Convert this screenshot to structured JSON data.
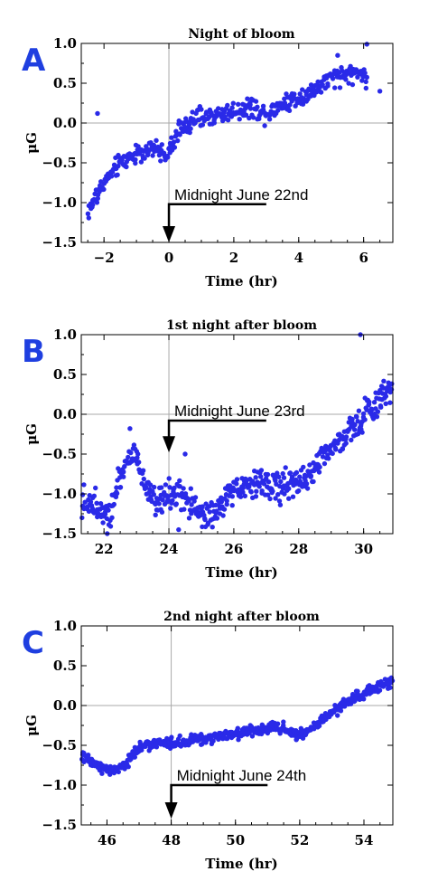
{
  "chart_data": [
    {
      "type": "scatter",
      "panel_letter": "A",
      "title": "Night of bloom",
      "xlabel": "Time (hr)",
      "ylabel": "μG",
      "xlim": [
        -2.7,
        6.9
      ],
      "ylim": [
        -1.5,
        1.0
      ],
      "xticks": [
        -2,
        0,
        2,
        4,
        6
      ],
      "yticks": [
        -1.5,
        -1.0,
        -0.5,
        0.0,
        0.5,
        1.0
      ],
      "ytick_labels": [
        "−1.5",
        "−1.0",
        "−0.5",
        "0.0",
        "0.5",
        "1.0"
      ],
      "xtick_labels": [
        "−2",
        "0",
        "2",
        "4",
        "6"
      ],
      "crosshair": {
        "x": 0,
        "y": 0
      },
      "annotation": {
        "text": "Midnight June 22nd",
        "x": 0,
        "x_end": 3.0,
        "y_line": -1.02,
        "y_arrow_tip": -1.5
      },
      "color": "#2a2ae8",
      "profile": [
        [
          -2.5,
          -1.12
        ],
        [
          -2.0,
          -0.75
        ],
        [
          -1.5,
          -0.5
        ],
        [
          -1.0,
          -0.38
        ],
        [
          -0.5,
          -0.33
        ],
        [
          0.0,
          -0.38
        ],
        [
          0.3,
          -0.1
        ],
        [
          0.8,
          0.05
        ],
        [
          1.5,
          0.1
        ],
        [
          2.0,
          0.15
        ],
        [
          2.5,
          0.2
        ],
        [
          3.0,
          0.12
        ],
        [
          3.5,
          0.25
        ],
        [
          4.0,
          0.32
        ],
        [
          4.5,
          0.42
        ],
        [
          5.0,
          0.55
        ],
        [
          5.5,
          0.62
        ],
        [
          6.0,
          0.62
        ],
        [
          6.5,
          0.4
        ]
      ],
      "t_range": [
        -2.5,
        6.1
      ],
      "noise": 0.09,
      "n_points": 420,
      "outliers": [
        [
          -2.2,
          0.12
        ],
        [
          6.5,
          0.4
        ],
        [
          6.1,
          0.99
        ],
        [
          5.2,
          0.85
        ]
      ]
    },
    {
      "type": "scatter",
      "panel_letter": "B",
      "title": "1st night after bloom",
      "xlabel": "Time (hr)",
      "ylabel": "μG",
      "xlim": [
        21.3,
        30.9
      ],
      "ylim": [
        -1.5,
        1.0
      ],
      "xticks": [
        22,
        24,
        26,
        28,
        30
      ],
      "yticks": [
        -1.5,
        -1.0,
        -0.5,
        0.0,
        0.5,
        1.0
      ],
      "ytick_labels": [
        "−1.5",
        "−1.0",
        "−0.5",
        "0.0",
        "0.5",
        "1.0"
      ],
      "xtick_labels": [
        "22",
        "24",
        "26",
        "28",
        "30"
      ],
      "crosshair": {
        "x": 24,
        "y": 0
      },
      "annotation": {
        "text": "Midnight June 23rd",
        "x": 24,
        "x_end": 27.0,
        "y_line": -0.08,
        "y_arrow_tip": -0.48
      },
      "color": "#2a2ae8",
      "profile": [
        [
          21.3,
          -1.1
        ],
        [
          21.8,
          -1.15
        ],
        [
          22.2,
          -1.2
        ],
        [
          22.5,
          -0.75
        ],
        [
          22.8,
          -0.5
        ],
        [
          23.1,
          -0.62
        ],
        [
          23.3,
          -0.9
        ],
        [
          23.6,
          -1.05
        ],
        [
          24.0,
          -1.05
        ],
        [
          24.4,
          -1.02
        ],
        [
          24.8,
          -1.25
        ],
        [
          25.2,
          -1.3
        ],
        [
          25.6,
          -1.18
        ],
        [
          26.0,
          -0.95
        ],
        [
          26.5,
          -0.9
        ],
        [
          27.0,
          -0.85
        ],
        [
          27.5,
          -0.9
        ],
        [
          28.0,
          -0.88
        ],
        [
          28.5,
          -0.65
        ],
        [
          29.0,
          -0.4
        ],
        [
          29.5,
          -0.25
        ],
        [
          30.0,
          -0.05
        ],
        [
          30.5,
          0.2
        ],
        [
          30.9,
          0.35
        ]
      ],
      "t_range": [
        21.3,
        30.9
      ],
      "noise": 0.14,
      "n_points": 520,
      "outliers": [
        [
          22.8,
          -0.18
        ],
        [
          24.5,
          -0.5
        ],
        [
          29.9,
          1.0
        ],
        [
          22.1,
          -1.5
        ],
        [
          24.3,
          -1.45
        ]
      ]
    },
    {
      "type": "scatter",
      "panel_letter": "C",
      "title": "2nd night after  bloom",
      "xlabel": "Time (hr)",
      "ylabel": "μG",
      "xlim": [
        45.2,
        54.9
      ],
      "ylim": [
        -1.5,
        1.0
      ],
      "xticks": [
        46,
        48,
        50,
        52,
        54
      ],
      "yticks": [
        -1.5,
        -1.0,
        -0.5,
        0.0,
        0.5,
        1.0
      ],
      "ytick_labels": [
        "−1.5",
        "−1.0",
        "−0.5",
        "0.0",
        "0.5",
        "1.0"
      ],
      "xtick_labels": [
        "46",
        "48",
        "50",
        "52",
        "54"
      ],
      "crosshair": {
        "x": 48,
        "y": 0
      },
      "annotation": {
        "text": "Midnight June 24th",
        "x": 48,
        "x_end": 51.0,
        "y_line": -1.0,
        "y_arrow_tip": -1.42
      },
      "color": "#2a2ae8",
      "profile": [
        [
          45.2,
          -0.65
        ],
        [
          45.7,
          -0.75
        ],
        [
          46.2,
          -0.82
        ],
        [
          46.6,
          -0.75
        ],
        [
          47.0,
          -0.5
        ],
        [
          47.5,
          -0.48
        ],
        [
          48.0,
          -0.47
        ],
        [
          48.5,
          -0.45
        ],
        [
          49.0,
          -0.42
        ],
        [
          49.5,
          -0.4
        ],
        [
          50.0,
          -0.35
        ],
        [
          50.5,
          -0.32
        ],
        [
          51.0,
          -0.3
        ],
        [
          51.5,
          -0.28
        ],
        [
          52.0,
          -0.38
        ],
        [
          52.5,
          -0.25
        ],
        [
          53.0,
          -0.08
        ],
        [
          53.5,
          0.05
        ],
        [
          54.0,
          0.15
        ],
        [
          54.5,
          0.25
        ],
        [
          54.9,
          0.32
        ]
      ],
      "t_range": [
        45.2,
        54.9
      ],
      "noise": 0.05,
      "n_points": 520,
      "outliers": []
    }
  ]
}
